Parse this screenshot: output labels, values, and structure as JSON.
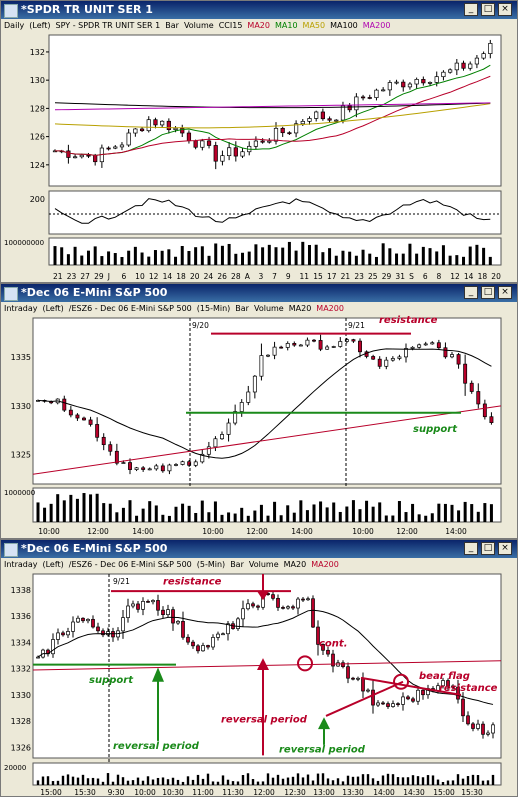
{
  "windows": [
    {
      "title": "*SPDR TR UNIT SER 1",
      "header": [
        {
          "t": "Daily",
          "c": "#000"
        },
        {
          "t": "(Left)",
          "c": "#000"
        },
        {
          "t": "SPY - SPDR TR UNIT SER 1",
          "c": "#000"
        },
        {
          "t": "Bar",
          "c": "#000"
        },
        {
          "t": "Volume",
          "c": "#000"
        },
        {
          "t": "CCI15",
          "c": "#000"
        },
        {
          "t": "MA20",
          "c": "#b8002a"
        },
        {
          "t": "MA10",
          "c": "#008000"
        },
        {
          "t": "MA50",
          "c": "#b8a000"
        },
        {
          "t": "MA100",
          "c": "#000"
        },
        {
          "t": "MA200",
          "c": "#b000b0"
        }
      ],
      "price_ticks": [
        "132",
        "130",
        "128",
        "126",
        "124"
      ],
      "cci_ticks": [
        "200"
      ],
      "vol_ticks": [
        "100000000"
      ],
      "dates": [
        "21",
        "23",
        "27",
        "29",
        "J",
        "6",
        "10",
        "12",
        "14",
        "18",
        "20",
        "24",
        "26",
        "28",
        "A",
        "3",
        "7",
        "9",
        "11",
        "15",
        "17",
        "21",
        "23",
        "25",
        "29",
        "31",
        "S",
        "6",
        "8",
        "12",
        "14",
        "18",
        "20"
      ]
    },
    {
      "title": "*Dec 06  E-Mini S&P 500",
      "header": [
        {
          "t": "Intraday",
          "c": "#000"
        },
        {
          "t": "(Left)",
          "c": "#000"
        },
        {
          "t": "/ESZ6 - Dec 06  E-Mini S&P 500",
          "c": "#000"
        },
        {
          "t": "(15-Min)",
          "c": "#000"
        },
        {
          "t": "Bar",
          "c": "#000"
        },
        {
          "t": "Volume",
          "c": "#000"
        },
        {
          "t": "MA20",
          "c": "#000"
        },
        {
          "t": "MA200",
          "c": "#b8002a"
        }
      ],
      "date_markers": [
        "9/20",
        "9/21"
      ],
      "price_ticks": [
        "1335",
        "1330",
        "1325"
      ],
      "vol_ticks": [
        "1000000"
      ],
      "times": [
        "10:00",
        "12:00",
        "14:00",
        "10:00",
        "12:00",
        "14:00",
        "10:00",
        "12:00",
        "14:00"
      ],
      "annotations": {
        "resistance": "resistance",
        "support": "support"
      }
    },
    {
      "title": "*Dec 06  E-Mini S&P 500",
      "header": [
        {
          "t": "Intraday",
          "c": "#000"
        },
        {
          "t": "(Left)",
          "c": "#000"
        },
        {
          "t": "/ESZ6 - Dec 06  E-Mini S&P 500",
          "c": "#000"
        },
        {
          "t": "(5-Min)",
          "c": "#000"
        },
        {
          "t": "Bar",
          "c": "#000"
        },
        {
          "t": "Volume",
          "c": "#000"
        },
        {
          "t": "MA20",
          "c": "#000"
        },
        {
          "t": "MA200",
          "c": "#b8002a"
        }
      ],
      "date_markers": [
        "9/21"
      ],
      "price_ticks": [
        "1338",
        "1336",
        "1334",
        "1332",
        "1330",
        "1328",
        "1326"
      ],
      "vol_ticks": [
        "20000"
      ],
      "times": [
        "15:00",
        "15:30",
        "9:30",
        "10:00",
        "10:30",
        "11:00",
        "11:30",
        "12:00",
        "12:30",
        "13:00",
        "13:30",
        "14:00",
        "14:30",
        "15:00",
        "15:30"
      ],
      "annotations": {
        "resistance": "resistance",
        "support": "support",
        "cont": "cont.",
        "reversal_period_1": "reversal period",
        "reversal_period_2": "reversal period",
        "reversal_period_3": "reversal period",
        "bear_flag": "bear flag",
        "resistance_2": "resistance"
      }
    }
  ],
  "window_buttons": {
    "min": "_",
    "max": "□",
    "close": "×"
  },
  "colors": {
    "titlebar": "#0a246a",
    "up": "#ffffff",
    "down": "#b8002a",
    "ma_red": "#b8002a",
    "ma_green": "#008000",
    "ma_yellow": "#b8a000",
    "ma_purple": "#b000b0",
    "annot_red": "#b8002a",
    "annot_green": "#1a8a1a"
  }
}
